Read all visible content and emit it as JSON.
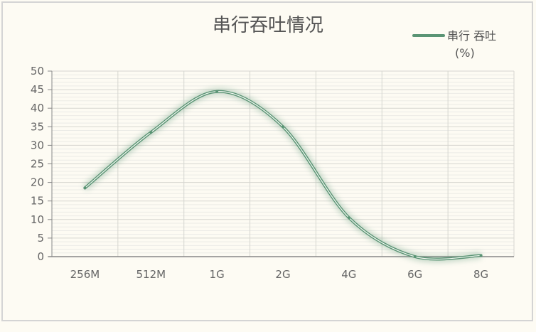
{
  "chart_data": {
    "type": "line",
    "title": "串行吞吐情况",
    "xlabel": "",
    "ylabel": "",
    "categories": [
      "256M",
      "512M",
      "1G",
      "2G",
      "4G",
      "6G",
      "8G"
    ],
    "series": [
      {
        "name": "串行 吞吐(%)",
        "values": [
          18.5,
          33.5,
          44.5,
          35,
          10.5,
          0,
          0.3
        ],
        "color": "#5a9474"
      }
    ],
    "ylim": [
      0,
      50
    ],
    "yticks": [
      0,
      5,
      10,
      15,
      20,
      25,
      30,
      35,
      40,
      45,
      50
    ],
    "grid": true,
    "legend_position": "top-right",
    "legend_lines": [
      "串行 吞吐",
      "(%)"
    ]
  }
}
